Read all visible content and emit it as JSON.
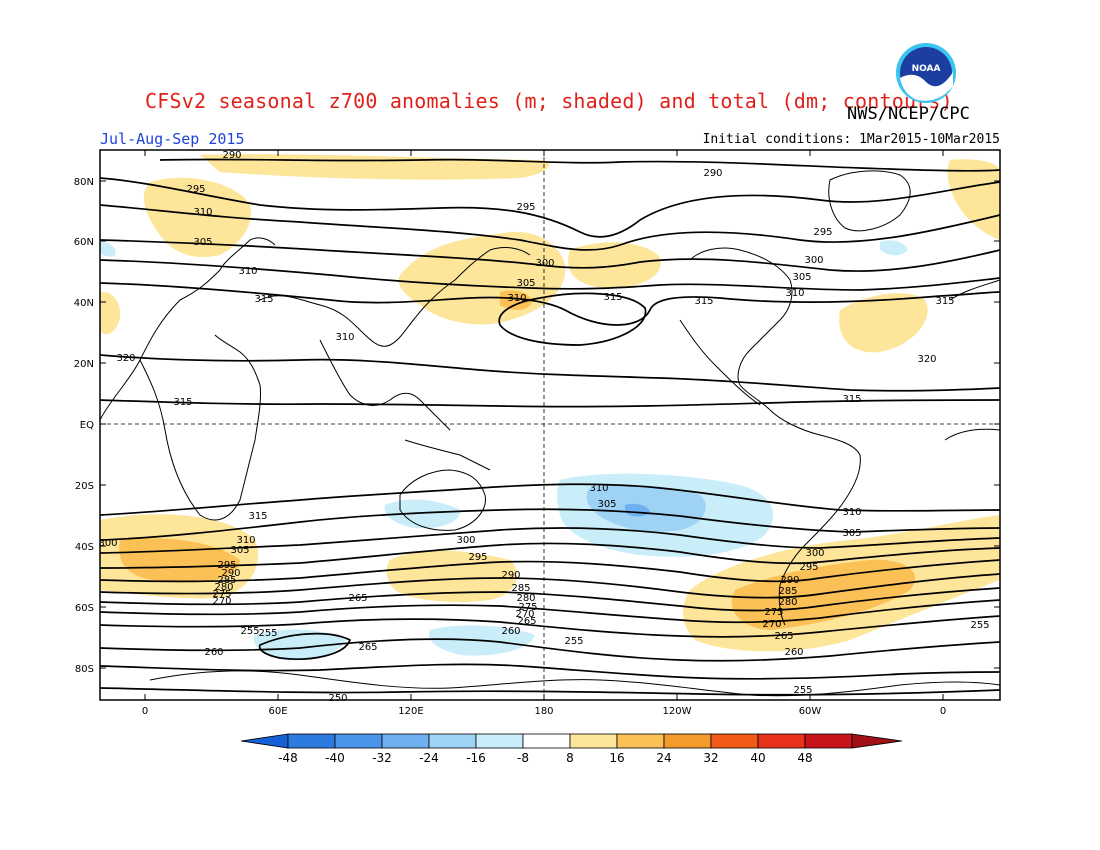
{
  "header": {
    "title": "CFSv2 seasonal z700 anomalies (m; shaded) and total (dm; contours)",
    "agency": "NWS/NCEP/CPC",
    "period": "Jul-Aug-Sep 2015",
    "initial_label": "Initial conditions:",
    "initial_value": "1Mar2015-10Mar2015",
    "logo_text": "NOAA"
  },
  "map": {
    "lat_labels": [
      "80N",
      "60N",
      "40N",
      "20N",
      "EQ",
      "20S",
      "40S",
      "60S",
      "80S"
    ],
    "lon_labels": [
      "0",
      "60E",
      "120E",
      "180",
      "120W",
      "60W",
      "0"
    ]
  },
  "contour_labels": [
    "290",
    "295",
    "300",
    "305",
    "310",
    "315",
    "320",
    "315",
    "310",
    "305",
    "300",
    "295",
    "290",
    "285",
    "280",
    "275",
    "270",
    "265",
    "260",
    "255",
    "250"
  ],
  "colorbar": {
    "values": [
      "-48",
      "-40",
      "-32",
      "-24",
      "-16",
      "-8",
      "8",
      "16",
      "24",
      "32",
      "40",
      "48"
    ],
    "colors": [
      "#1560d4",
      "#2e7be0",
      "#4a94ea",
      "#6fb0f0",
      "#9fd3f6",
      "#c9eef9",
      "#ffffff",
      "#fde59a",
      "#fbc056",
      "#f59a2c",
      "#f25a18",
      "#e8321a",
      "#c8141a",
      "#a01016"
    ]
  }
}
